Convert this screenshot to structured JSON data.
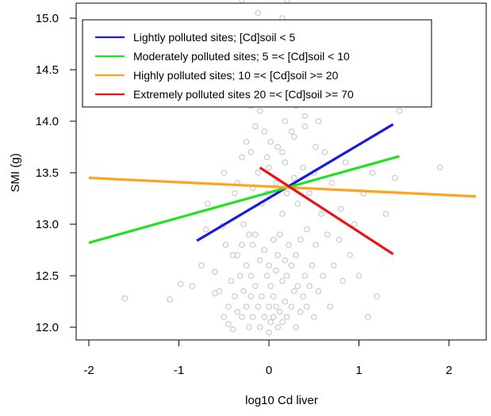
{
  "chart_data": {
    "type": "scatter",
    "title": "",
    "xlabel": "log10 Cd liver",
    "ylabel": "SMI (g)",
    "xlim": [
      -2.2,
      2.35
    ],
    "ylim": [
      11.9,
      15.1
    ],
    "xticks": [
      -2,
      -1,
      0,
      1,
      2
    ],
    "yticks": [
      12.0,
      12.5,
      13.0,
      13.5,
      14.0,
      14.5,
      15.0
    ],
    "grid": false,
    "legend_position": "top-left",
    "point_color": "#c8c8c8",
    "points_x": [
      -1.6,
      -1.1,
      -0.98,
      -0.85,
      -0.75,
      -0.7,
      -0.68,
      -0.6,
      -0.6,
      -0.55,
      -0.52,
      -0.5,
      -0.5,
      -0.48,
      -0.45,
      -0.45,
      -0.42,
      -0.4,
      -0.4,
      -0.38,
      -0.38,
      -0.35,
      -0.35,
      -0.35,
      -0.32,
      -0.3,
      -0.3,
      -0.3,
      -0.28,
      -0.28,
      -0.25,
      -0.25,
      -0.25,
      -0.22,
      -0.22,
      -0.2,
      -0.2,
      -0.2,
      -0.18,
      -0.18,
      -0.18,
      -0.15,
      -0.15,
      -0.15,
      -0.12,
      -0.12,
      -0.1,
      -0.1,
      -0.1,
      -0.08,
      -0.08,
      -0.05,
      -0.05,
      -0.05,
      -0.02,
      -0.02,
      0,
      0,
      0,
      0,
      0.02,
      0.02,
      0.02,
      0.05,
      0.05,
      0.05,
      0.05,
      0.08,
      0.08,
      0.08,
      0.1,
      0.1,
      0.1,
      0.12,
      0.12,
      0.12,
      0.15,
      0.15,
      0.15,
      0.15,
      0.18,
      0.18,
      0.18,
      0.2,
      0.2,
      0.2,
      0.22,
      0.22,
      0.25,
      0.25,
      0.25,
      0.28,
      0.28,
      0.3,
      0.3,
      0.3,
      0.32,
      0.32,
      0.35,
      0.35,
      0.35,
      0.38,
      0.38,
      0.4,
      0.4,
      0.42,
      0.42,
      0.45,
      0.45,
      0.45,
      0.48,
      0.5,
      0.5,
      0.52,
      0.55,
      0.55,
      0.58,
      0.6,
      0.62,
      0.65,
      0.68,
      0.7,
      0.72,
      0.75,
      0.78,
      0.8,
      0.82,
      0.85,
      0.9,
      0.95,
      1,
      1.05,
      1.1,
      1.15,
      1.2,
      1.3,
      1.4,
      1.45,
      1.9,
      0.22,
      -0.12,
      0.38,
      -0.28,
      0.58,
      0.05,
      -0.45,
      0.25,
      0.7,
      0.32,
      -0.05,
      0.15,
      0.48,
      -0.35,
      0.62,
      0.1,
      0.4,
      -0.2,
      0.28,
      0.52,
      -0.02,
      0.18,
      -0.6,
      0.85,
      0.33,
      -0.15,
      0.46,
      0.08,
      0.66,
      -0.3,
      0.2
    ],
    "points_y": [
      12.28,
      12.27,
      12.42,
      12.4,
      12.6,
      12.95,
      13.2,
      12.33,
      12.54,
      12.35,
      12.98,
      12.1,
      13.5,
      12.8,
      12.03,
      12.2,
      12.45,
      11.98,
      12.7,
      12.3,
      13.3,
      12.15,
      12.7,
      13.4,
      12.5,
      12.1,
      12.8,
      13.65,
      12.35,
      13.0,
      12.2,
      12.6,
      13.8,
      12.0,
      12.9,
      12.3,
      12.5,
      13.7,
      12.1,
      12.8,
      13.35,
      12.4,
      12.9,
      13.95,
      12.2,
      13.5,
      12.0,
      12.65,
      14.1,
      12.3,
      13.2,
      12.1,
      12.75,
      13.9,
      12.5,
      13.3,
      11.95,
      12.2,
      12.6,
      13.55,
      12.05,
      12.4,
      13.8,
      12.1,
      12.3,
      12.85,
      14.2,
      12.2,
      12.55,
      13.4,
      12.0,
      12.7,
      13.75,
      12.15,
      12.9,
      14.3,
      12.05,
      12.45,
      13.1,
      13.7,
      12.25,
      12.65,
      14.0,
      12.1,
      12.5,
      13.3,
      12.8,
      14.5,
      12.2,
      12.6,
      13.9,
      12.35,
      13.45,
      12.0,
      12.7,
      14.15,
      12.4,
      13.2,
      12.15,
      12.85,
      14.6,
      12.3,
      13.55,
      12.5,
      13.95,
      12.2,
      12.95,
      12.4,
      13.3,
      14.8,
      12.6,
      12.1,
      13.5,
      12.8,
      12.35,
      14.0,
      13.1,
      12.5,
      13.7,
      12.9,
      12.2,
      13.4,
      12.6,
      14.3,
      12.85,
      13.15,
      12.45,
      13.6,
      12.7,
      13.0,
      12.5,
      13.3,
      12.1,
      13.5,
      12.3,
      13.1,
      13.45,
      14.1,
      13.55,
      14.95,
      15.05,
      14.9,
      14.7,
      14.85,
      14.55,
      14.65,
      14.75,
      14.45,
      14.95,
      14.35,
      15.0,
      14.6,
      14.25,
      14.4,
      14.8,
      14.05,
      14.15,
      13.85,
      13.75,
      13.65,
      13.6,
      14.35,
      14.5,
      14.7,
      14.55,
      14.9,
      14.2,
      14.4
    ],
    "series": [
      {
        "name": "Lightly polluted sites; [Cd]soil < 5",
        "color": "#1a1adc",
        "x": [
          -0.8,
          1.38
        ],
        "y": [
          12.84,
          13.97
        ]
      },
      {
        "name": "Moderately polluted sites; 5 =< [Cd]soil < 10",
        "color": "#22e022",
        "x": [
          -2.0,
          1.45
        ],
        "y": [
          12.82,
          13.66
        ]
      },
      {
        "name": "Highly polluted sites; 10 =< [Cd]soil >= 20",
        "color": "#ffa31a",
        "x": [
          -2.0,
          2.3
        ],
        "y": [
          13.45,
          13.27
        ]
      },
      {
        "name": "Extremely polluted sites 20 =< [Cd]soil >= 70",
        "color": "#ee1111",
        "x": [
          -0.1,
          1.38
        ],
        "y": [
          13.55,
          12.71
        ]
      }
    ]
  }
}
